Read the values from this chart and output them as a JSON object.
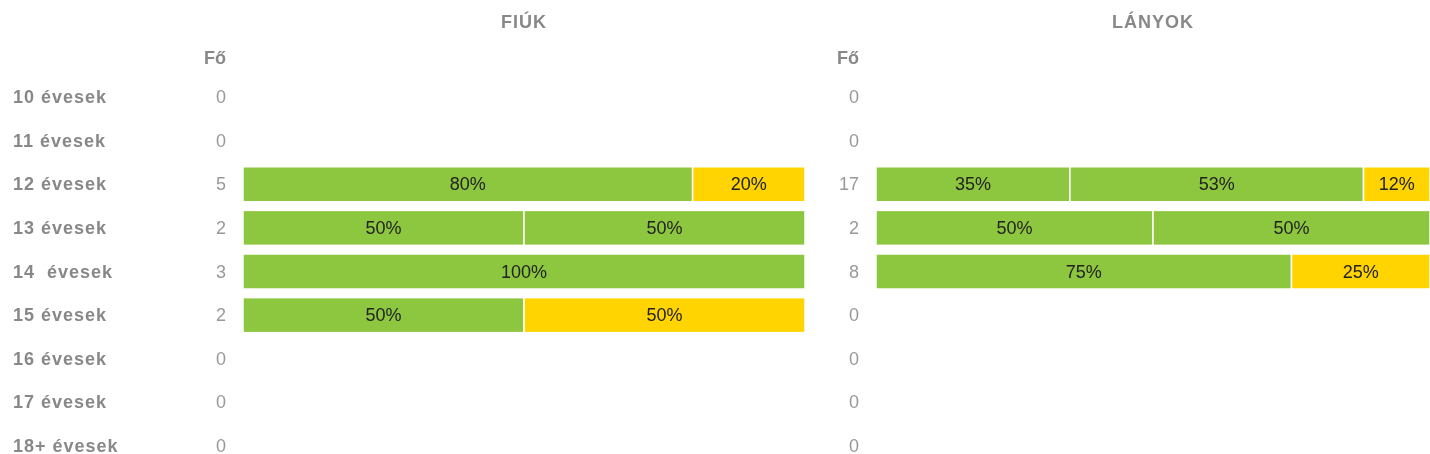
{
  "chart_data": [
    {
      "type": "bar",
      "orientation": "horizontal",
      "stacked": true,
      "title": "FIÚK",
      "ylabel": "Fő",
      "tick_labels": "y",
      "xlim": [
        0,
        100
      ],
      "categories": [
        "10 évesek",
        "11 évesek",
        "12 évesek",
        "13 évesek",
        "14  évesek",
        "15 évesek",
        "16 évesek",
        "17 évesek",
        "18+ évesek"
      ],
      "annotations": [
        "0",
        "0",
        "5",
        "2",
        "3",
        "2",
        "0",
        "0",
        "0"
      ],
      "series": [
        {
          "color": "#8dc63f",
          "values": [
            null,
            null,
            80,
            50,
            100,
            50,
            null,
            null,
            null
          ],
          "value_labels": [
            null,
            null,
            "80%",
            "50%",
            "100%",
            "50%",
            null,
            null,
            null
          ]
        },
        {
          "color": "#8dc63f",
          "values": [
            null,
            null,
            null,
            50,
            null,
            null,
            null,
            null,
            null
          ],
          "value_labels": [
            null,
            null,
            null,
            "50%",
            null,
            null,
            null,
            null,
            null
          ]
        },
        {
          "color": "#ffd400",
          "values": [
            null,
            null,
            20,
            null,
            null,
            50,
            null,
            null,
            null
          ],
          "value_labels": [
            null,
            null,
            "20%",
            null,
            null,
            "50%",
            null,
            null,
            null
          ]
        }
      ]
    },
    {
      "type": "bar",
      "orientation": "horizontal",
      "stacked": true,
      "title": "LÁNYOK",
      "ylabel": "Fő",
      "tick_labels": false,
      "xlim": [
        0,
        100
      ],
      "annotations": [
        "0",
        "0",
        "17",
        "2",
        "8",
        "0",
        "0",
        "0",
        "0"
      ],
      "series": [
        {
          "color": "#8dc63f",
          "values": [
            null,
            null,
            35,
            50,
            75,
            null,
            null,
            null,
            null
          ],
          "value_labels": [
            null,
            null,
            "35%",
            "50%",
            "75%",
            null,
            null,
            null,
            null
          ]
        },
        {
          "color": "#8dc63f",
          "values": [
            null,
            null,
            53,
            50,
            null,
            null,
            null,
            null,
            null
          ],
          "value_labels": [
            null,
            null,
            "53%",
            "50%",
            null,
            null,
            null,
            null,
            null
          ]
        },
        {
          "color": "#ffd400",
          "values": [
            null,
            null,
            12,
            null,
            25,
            null,
            null,
            null,
            null
          ],
          "value_labels": [
            null,
            null,
            "12%",
            null,
            "25%",
            null,
            null,
            null,
            null
          ]
        }
      ]
    }
  ]
}
